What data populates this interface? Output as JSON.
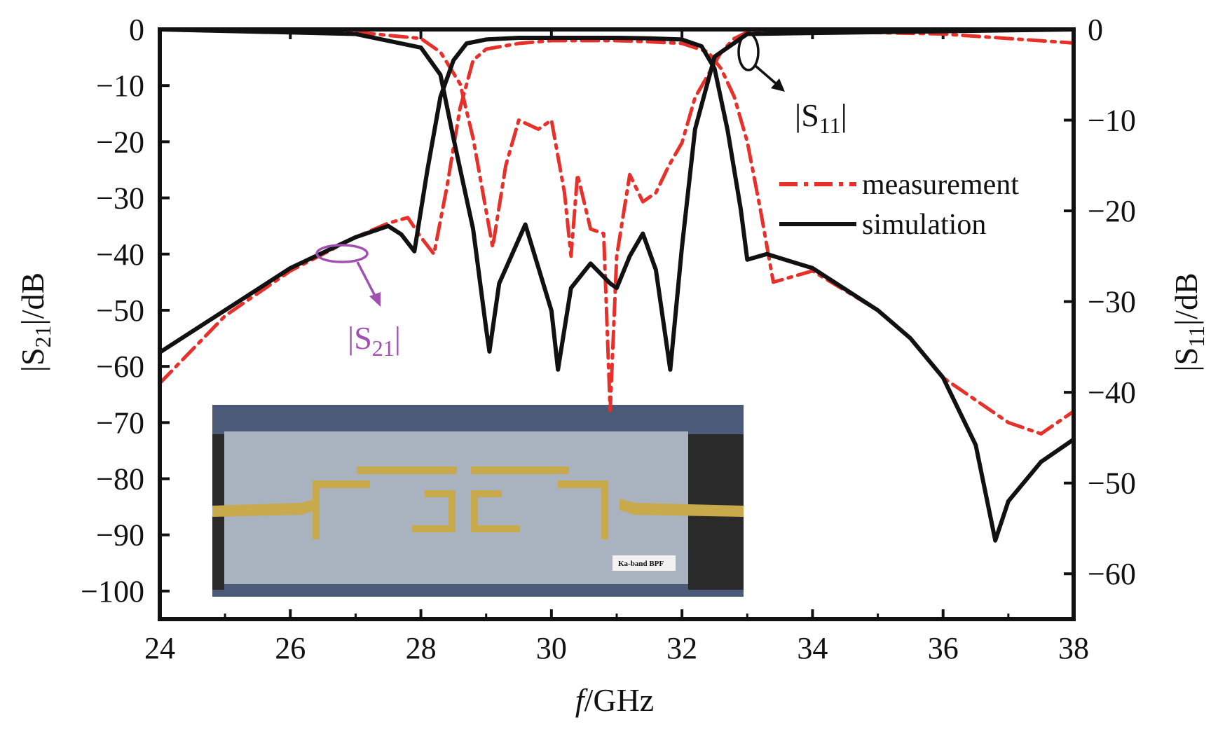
{
  "chart_data": {
    "type": "line",
    "xlabel": {
      "italic": "f",
      "rest": "/GHz"
    },
    "ylabel_left": {
      "pre": "|S",
      "sub": "21",
      "post": "|/dB"
    },
    "ylabel_right": {
      "pre": "|S",
      "sub": "11",
      "post": "|/dB"
    },
    "xlim": [
      24,
      38
    ],
    "ylim_left": [
      -105,
      0
    ],
    "ylim_right": [
      -65,
      0
    ],
    "x_ticks": [
      "24",
      "26",
      "28",
      "30",
      "32",
      "34",
      "36",
      "38"
    ],
    "y_ticks_left": [
      "0",
      "-10",
      "-20",
      "-30",
      "-40",
      "-50",
      "-60",
      "-70",
      "-80",
      "-90",
      "-100"
    ],
    "y_ticks_right": [
      "0",
      "-10",
      "-20",
      "-30",
      "-40",
      "-50",
      "-60"
    ],
    "legend": [
      {
        "label": "measurement",
        "style": "dash-dot",
        "color": "#e8302a"
      },
      {
        "label": "simulation",
        "style": "solid",
        "color": "#111111"
      }
    ],
    "annotations": {
      "s21": {
        "pre": "|S",
        "sub": "21",
        "post": "|",
        "color": "#a050b0"
      },
      "s11": {
        "pre": "|S",
        "sub": "11",
        "post": "|",
        "color": "#111111"
      }
    },
    "inset_label": "Ka-band BPF",
    "series": [
      {
        "name": "simulation",
        "quantity": "|S21|",
        "axis": "left",
        "x": [
          24.0,
          25.0,
          26.0,
          27.0,
          27.5,
          27.7,
          27.9,
          28.1,
          28.3,
          28.5,
          28.7,
          29.0,
          29.5,
          30.0,
          30.5,
          31.0,
          31.5,
          32.0,
          32.3,
          32.5,
          32.7,
          32.9,
          33.0,
          33.3,
          34.0,
          35.0,
          35.5,
          36.0,
          36.5,
          36.8,
          37.0,
          37.5,
          38.0
        ],
        "y": [
          -57.5,
          -50.0,
          -42.5,
          -37.0,
          -35.0,
          -36.5,
          -39.5,
          -25.0,
          -12.0,
          -5.5,
          -2.5,
          -1.8,
          -1.5,
          -1.5,
          -1.5,
          -1.5,
          -1.6,
          -1.8,
          -3.0,
          -7.0,
          -18.0,
          -32.0,
          -41.0,
          -40.0,
          -42.5,
          -50.0,
          -55.0,
          -62.0,
          -74.0,
          -91.0,
          -84.0,
          -77.0,
          -73.0
        ]
      },
      {
        "name": "simulation",
        "quantity": "|S11|",
        "axis": "right",
        "x": [
          24.0,
          27.0,
          28.0,
          28.3,
          28.5,
          28.8,
          29.0,
          29.05,
          29.2,
          29.6,
          30.0,
          30.1,
          30.3,
          30.6,
          30.9,
          31.0,
          31.2,
          31.4,
          31.6,
          31.82,
          32.0,
          32.2,
          32.5,
          33.0,
          38.0
        ],
        "y": [
          0.0,
          -0.5,
          -2.0,
          -5.0,
          -12.0,
          -22.0,
          -33.0,
          -35.5,
          -28.0,
          -21.5,
          -31.0,
          -37.5,
          -28.5,
          -25.8,
          -28.0,
          -28.5,
          -25.0,
          -22.5,
          -26.5,
          -37.5,
          -24.0,
          -11.0,
          -3.0,
          -0.5,
          0.0
        ]
      },
      {
        "name": "measurement",
        "quantity": "|S21|",
        "axis": "left",
        "x": [
          24.0,
          25.0,
          26.0,
          27.0,
          27.5,
          27.8,
          28.0,
          28.2,
          28.4,
          28.6,
          28.8,
          29.0,
          29.5,
          30.0,
          30.5,
          31.0,
          31.5,
          32.0,
          32.4,
          32.6,
          32.8,
          33.0,
          33.2,
          33.4,
          34.0,
          35.0,
          35.5,
          36.0,
          36.5,
          37.0,
          37.5,
          38.0
        ],
        "y": [
          -63.0,
          -51.0,
          -43.0,
          -37.0,
          -34.5,
          -33.5,
          -37.0,
          -40.0,
          -28.0,
          -14.0,
          -5.5,
          -3.5,
          -2.5,
          -2.0,
          -2.0,
          -2.0,
          -2.2,
          -2.5,
          -4.0,
          -7.0,
          -12.0,
          -20.0,
          -32.0,
          -45.0,
          -43.0,
          -50.0,
          -55.0,
          -62.0,
          -66.0,
          -70.0,
          -72.0,
          -68.0
        ]
      },
      {
        "name": "measurement",
        "quantity": "|S11|",
        "axis": "right",
        "x": [
          24.0,
          27.0,
          28.0,
          28.3,
          28.6,
          28.8,
          29.0,
          29.1,
          29.3,
          29.5,
          29.8,
          30.0,
          30.2,
          30.3,
          30.4,
          30.6,
          30.8,
          30.9,
          31.0,
          31.2,
          31.4,
          31.6,
          31.8,
          32.0,
          32.2,
          32.4,
          32.6,
          32.8,
          33.0,
          34.0,
          36.0,
          38.0
        ],
        "y": [
          0.0,
          -0.3,
          -1.0,
          -2.5,
          -6.0,
          -12.0,
          -20.0,
          -24.0,
          -15.0,
          -10.0,
          -11.0,
          -10.0,
          -18.0,
          -25.0,
          -16.0,
          -22.0,
          -22.5,
          -42.0,
          -25.0,
          -16.0,
          -19.0,
          -18.0,
          -15.0,
          -12.5,
          -7.5,
          -5.0,
          -2.5,
          -1.0,
          -0.3,
          -0.2,
          -0.5,
          -1.5
        ]
      }
    ]
  }
}
